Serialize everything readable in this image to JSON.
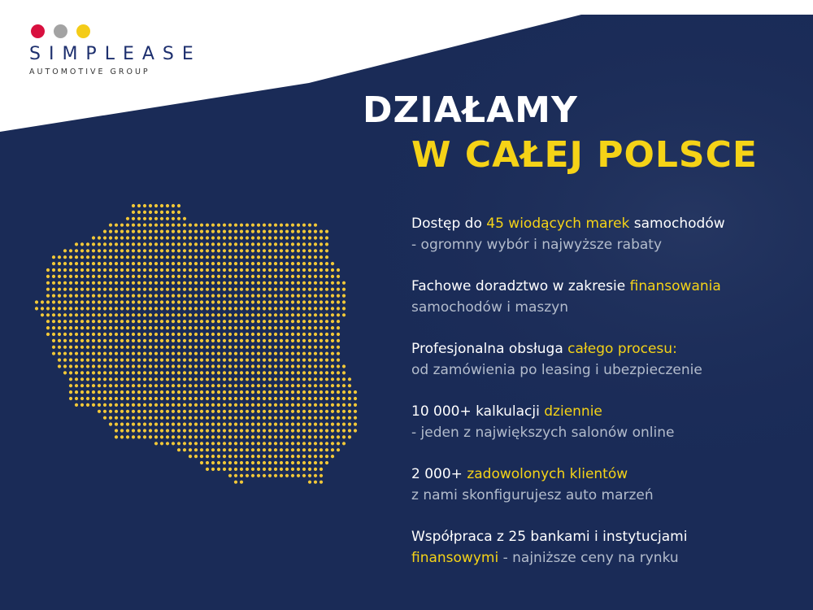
{
  "logo": {
    "name": "SIMPLEASE",
    "tagline": "AUTOMOTIVE GROUP",
    "dot_colors": [
      "#d8103f",
      "#a3a3a3",
      "#f4cc18"
    ]
  },
  "headline": {
    "line1": "DZIAŁAMY",
    "line2": "W CAŁEJ POLSCE"
  },
  "colors": {
    "navy": "#1a2b57",
    "accent_yellow": "#f5d317",
    "map_dots": "#f2c838",
    "logo_text": "#1d2f6e"
  },
  "map_label": "poland-dot-map",
  "features": [
    {
      "l1_a": "Dostęp do ",
      "l1_hl": "45 wiodących marek",
      "l1_b": " samochodów",
      "l2_a": "- ogromny wybór i najwyższe rabaty",
      "l2_hl": "",
      "l2_b": ""
    },
    {
      "l1_a": "Fachowe doradztwo w zakresie ",
      "l1_hl": "finansowania",
      "l1_b": "",
      "l2_a": "samochodów i maszyn",
      "l2_hl": "",
      "l2_b": ""
    },
    {
      "l1_a": "Profesjonalna obsługa ",
      "l1_hl": "całego procesu:",
      "l1_b": "",
      "l2_a": "od zamówienia po leasing i ubezpieczenie",
      "l2_hl": "",
      "l2_b": ""
    },
    {
      "l1_a": "10 000+ kalkulacji ",
      "l1_hl": "dziennie",
      "l1_b": "",
      "l2_a": "- jeden z największych salonów online",
      "l2_hl": "",
      "l2_b": ""
    },
    {
      "l1_a": "2 000+ ",
      "l1_hl": "zadowolonych klientów",
      "l1_b": "",
      "l2_a": "z nami skonfigurujesz auto marzeń",
      "l2_hl": "",
      "l2_b": ""
    },
    {
      "l1_a": "Współpraca z 25 bankami i instytucjami",
      "l1_hl": "",
      "l1_b": "",
      "l2_a": "",
      "l2_hl": "finansowymi",
      "l2_b": " - najniższe ceny na rynku"
    }
  ]
}
